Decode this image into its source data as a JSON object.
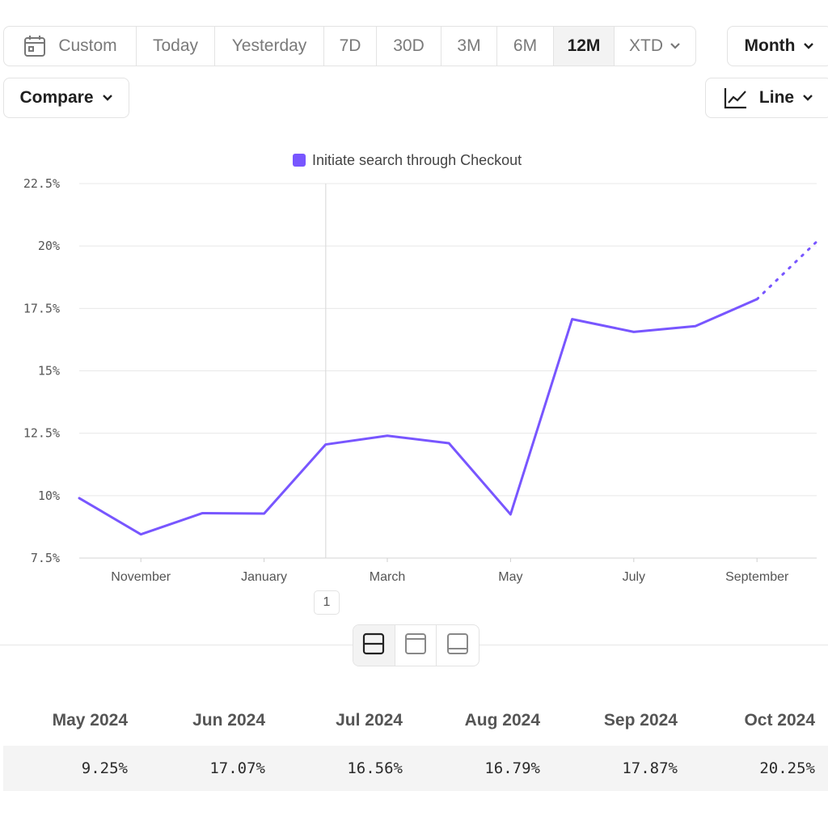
{
  "toolbar": {
    "custom_label": "Custom",
    "ranges": [
      "Today",
      "Yesterday",
      "7D",
      "30D",
      "3M",
      "6M",
      "12M"
    ],
    "active_range": "12M",
    "xtd_label": "XTD",
    "interval_label": "Month",
    "compare_label": "Compare",
    "chart_type_label": "Line"
  },
  "chart_data": {
    "type": "line",
    "legend": [
      "Initiate search through Checkout"
    ],
    "legend_position": "top-center",
    "series": [
      {
        "name": "Initiate search through Checkout",
        "color": "#7856ff",
        "x": [
          "Oct 2023",
          "Nov 2023",
          "Dec 2023",
          "Jan 2024",
          "Feb 2024",
          "Mar 2024",
          "Apr 2024",
          "May 2024",
          "Jun 2024",
          "Jul 2024",
          "Aug 2024",
          "Sep 2024",
          "Oct 2024"
        ],
        "values": [
          9.9,
          8.45,
          9.3,
          9.28,
          12.05,
          12.4,
          12.1,
          9.25,
          17.07,
          16.56,
          16.79,
          17.87,
          20.25
        ],
        "partial_from": "Sep 2024"
      }
    ],
    "x_tick_labels": [
      "November",
      "January",
      "March",
      "May",
      "July",
      "September"
    ],
    "y_tick_labels": [
      "7.5%",
      "10%",
      "12.5%",
      "15%",
      "17.5%",
      "20%",
      "22.5%"
    ],
    "y_ticks": [
      7.5,
      10,
      12.5,
      15,
      17.5,
      20,
      22.5
    ],
    "ylim": [
      7.5,
      22.5
    ],
    "grid": true,
    "annotation": {
      "label": "1",
      "x": "Feb 2024"
    }
  },
  "table": {
    "headers": [
      "May 2024",
      "Jun 2024",
      "Jul 2024",
      "Aug 2024",
      "Sep 2024",
      "Oct 2024"
    ],
    "values": [
      "9.25%",
      "17.07%",
      "16.56%",
      "16.79%",
      "17.87%",
      "20.25%"
    ]
  }
}
